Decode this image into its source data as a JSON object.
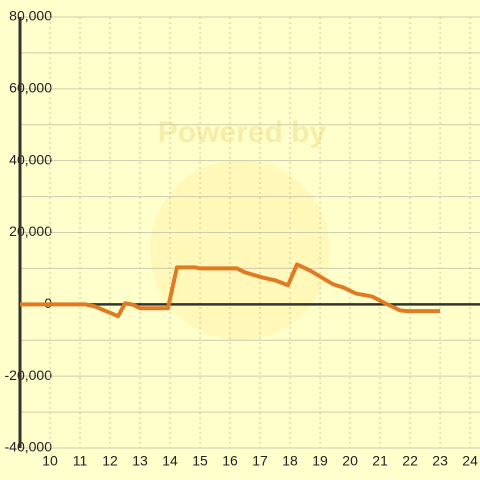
{
  "chart_data": {
    "type": "line",
    "watermark": "Powered by",
    "series": [
      {
        "color": "#e07b24",
        "x": [
          9,
          11.17,
          11.5,
          12.27,
          12.5,
          12.77,
          13,
          13.93,
          14.23,
          14.83,
          15,
          16.23,
          16.5,
          17.07,
          17.5,
          17.93,
          18.23,
          18.67,
          19.17,
          19.43,
          19.77,
          20.2,
          20.73,
          21.17,
          21.67,
          21.93,
          23
        ],
        "values": [
          0,
          0,
          -600,
          -3300,
          300,
          -100,
          -1100,
          -1100,
          10300,
          10300,
          10000,
          10000,
          8900,
          7500,
          6700,
          5300,
          11100,
          9400,
          6900,
          5600,
          4700,
          3000,
          2200,
          300,
          -1700,
          -1900,
          -1900
        ]
      }
    ],
    "xlim": [
      9,
      24.33
    ],
    "xticks": [
      10,
      11,
      12,
      13,
      14,
      15,
      16,
      17,
      18,
      19,
      20,
      21,
      22,
      23,
      24
    ],
    "ylim": [
      -40000,
      80000
    ],
    "yticks": [
      {
        "value": -40000,
        "label": "-40,000"
      },
      {
        "value": -20000,
        "label": "-20,000"
      },
      0,
      {
        "value": 20000,
        "label": "20,000"
      },
      {
        "value": 40000,
        "label": "40,000"
      },
      {
        "value": 60000,
        "label": "60,000"
      },
      {
        "value": 80000,
        "label": "80,000"
      }
    ],
    "y_minor_ticks": [
      -30000,
      -10000,
      10000,
      30000,
      50000,
      70000
    ],
    "grid": true
  }
}
